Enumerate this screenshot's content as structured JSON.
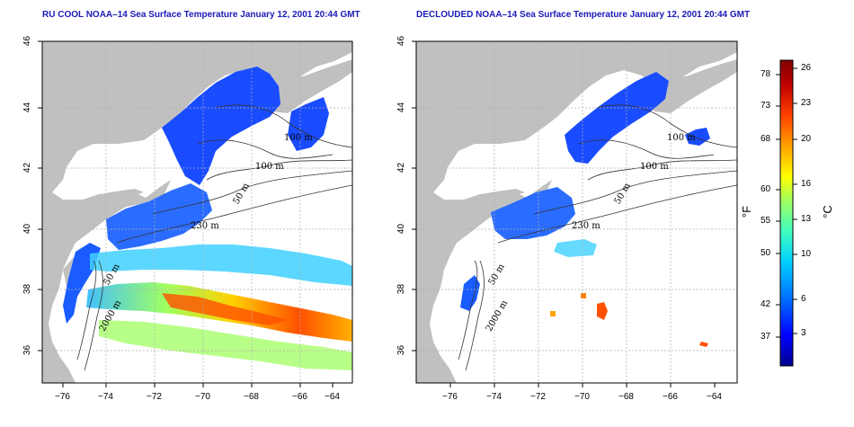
{
  "maps": [
    {
      "title": "RU COOL NOAA–14 Sea Surface Temperature January 12, 2001 20:44 GMT",
      "contour_labels": [
        "100 m",
        "100 m",
        "50 m",
        "230 m",
        "50 m",
        "2000 m"
      ]
    },
    {
      "title": "DECLOUDED NOAA–14 Sea Surface Temperature January 12, 2001 20:44 GMT",
      "contour_labels": [
        "100 m",
        "100 m",
        "50 m",
        "230 m",
        "50 m",
        "2000 m"
      ]
    }
  ],
  "axes": {
    "x_ticks": [
      "−76",
      "−74",
      "−72",
      "−70",
      "−68",
      "−66",
      "−64"
    ],
    "y_ticks": [
      "46",
      "44",
      "42",
      "40",
      "38",
      "36"
    ]
  },
  "colorbar": {
    "fahrenheit_ticks": [
      "78",
      "73",
      "68",
      "60",
      "55",
      "50",
      "42",
      "37"
    ],
    "celsius_ticks": [
      "26",
      "23",
      "20",
      "16",
      "13",
      "10",
      "6",
      "3"
    ],
    "fahrenheit_unit": "°F",
    "celsius_unit": "°C",
    "colors": [
      "#000090",
      "#0000ff",
      "#0070ff",
      "#00d0ff",
      "#40ffc0",
      "#a0ff60",
      "#ffff00",
      "#ffa000",
      "#ff4000",
      "#c00000",
      "#800000"
    ]
  },
  "colors": {
    "land": "#c0c0c0",
    "title": "#1a1ab8",
    "grid": "#b0b0b0"
  }
}
